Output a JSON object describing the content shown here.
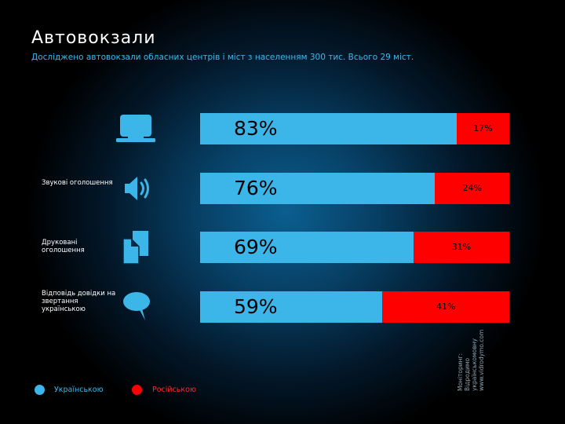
{
  "page": {
    "title": "Автовокзали",
    "subtitle": "Досліджено автовокзали обласних центрів і міст з населенням 300 тис. Всього 29 міст."
  },
  "rows": [
    {
      "label": "",
      "icon": "monitor-icon"
    },
    {
      "label": "Звукові оголошення",
      "icon": "speaker-icon"
    },
    {
      "label": "Друковані оголошення",
      "icon": "documents-icon"
    },
    {
      "label": "Відповідь довідки на звертання українською",
      "icon": "speech-bubble-icon"
    }
  ],
  "chart_data": {
    "type": "bar",
    "orientation": "horizontal",
    "stacked": true,
    "normalized_percent": true,
    "categories": [
      "",
      "Звукові оголошення",
      "Друковані оголошення",
      "Відповідь довідки на звертання українською"
    ],
    "series": [
      {
        "name": "Українською",
        "values": [
          83,
          76,
          69,
          59
        ],
        "labels": [
          "83%",
          "76%",
          "69%",
          "59%"
        ],
        "color": "#3cb5e8"
      },
      {
        "name": "Російською",
        "values": [
          17,
          24,
          31,
          41
        ],
        "labels": [
          "17%",
          "24%",
          "31%",
          "41%"
        ],
        "color": "#ff0000"
      }
    ],
    "xlim": [
      0,
      100
    ],
    "grid": false,
    "legend": "bottom-left",
    "title": "Автовокзали",
    "subtitle": "Досліджено автовокзали обласних центрів і міст з населенням 300 тис. Всього 29 міст."
  },
  "legend": {
    "ua_label": "Українською",
    "ru_label": "Російською"
  },
  "source": {
    "line1": "Моніторинг:",
    "line2": "Відродимо",
    "line3": "українськомовну",
    "line4": "www.vidrodymo.com"
  },
  "colors": {
    "ukrainian": "#3cb5e8",
    "russian": "#ff0000",
    "subtitle": "#3fb8ea",
    "legend_ua_text": "#3fb8ea",
    "legend_ru_text": "#ff2a2a"
  }
}
